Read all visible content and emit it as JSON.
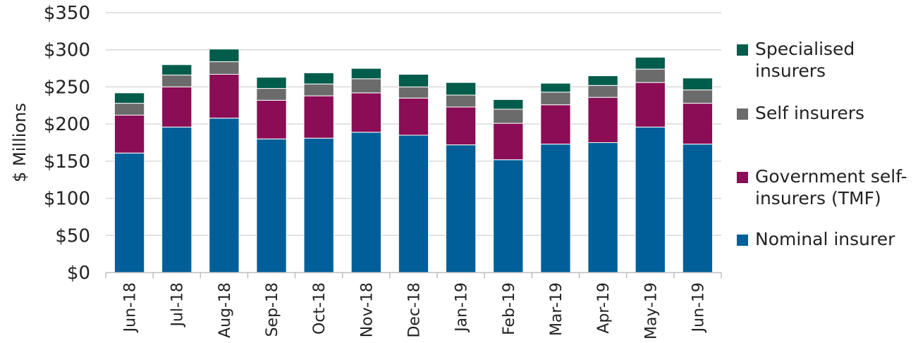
{
  "chart_data": {
    "type": "bar",
    "stacked": true,
    "title": "",
    "xlabel": "",
    "ylabel": "$ Millions",
    "ylim": [
      0,
      350
    ],
    "yticks": [
      "$0",
      "$50",
      "$100",
      "$150",
      "$200",
      "$250",
      "$300",
      "$350"
    ],
    "ytick_values": [
      0,
      50,
      100,
      150,
      200,
      250,
      300,
      350
    ],
    "grid": true,
    "legend_position": "right",
    "categories": [
      "Jun-18",
      "Jul-18",
      "Aug-18",
      "Sep-18",
      "Oct-18",
      "Nov-18",
      "Dec-18",
      "Jan-19",
      "Feb-19",
      "Mar-19",
      "Apr-19",
      "May-19",
      "Jun-19"
    ],
    "series": [
      {
        "name": "Nominal insurer",
        "color": "#005f99",
        "values": [
          161,
          196,
          208,
          180,
          181,
          189,
          185,
          172,
          152,
          173,
          175,
          196,
          173
        ]
      },
      {
        "name": "Government self-insurers (TMF)",
        "color": "#8a0d55",
        "values": [
          51,
          54,
          59,
          52,
          57,
          53,
          50,
          51,
          49,
          53,
          61,
          60,
          55
        ]
      },
      {
        "name": "Self insurers",
        "color": "#6b6b6b",
        "values": [
          16,
          16,
          17,
          16,
          16,
          19,
          15,
          16,
          19,
          17,
          16,
          18,
          18
        ]
      },
      {
        "name": "Specialised insurers",
        "color": "#005c4b",
        "values": [
          14,
          14,
          17,
          15,
          15,
          14,
          17,
          17,
          13,
          12,
          13,
          16,
          16
        ]
      }
    ]
  },
  "legend_order": [
    "Specialised insurers",
    "Self insurers",
    "Government self-insurers (TMF)",
    "Nominal insurer"
  ]
}
